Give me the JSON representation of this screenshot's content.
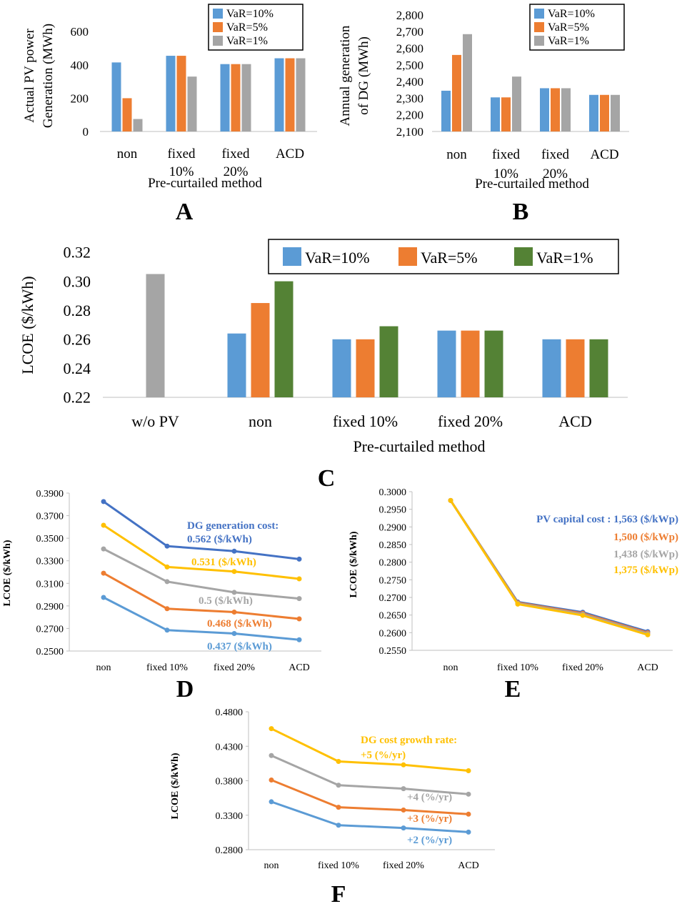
{
  "colors": {
    "blue": "#5b9bd5",
    "orange": "#ed7d31",
    "gray": "#a5a5a5",
    "green": "#548235",
    "yellow": "#ffc000",
    "darkblue": "#4472c4",
    "axis": "#bfbfbf",
    "text": "#000000"
  },
  "chart_data": [
    {
      "panel": "A",
      "type": "bar",
      "ylabel": [
        "Actual PV power",
        "Generation (MWh)"
      ],
      "xlabel": "Pre-curtailed method",
      "categories": [
        [
          "non"
        ],
        [
          "fixed",
          "10%"
        ],
        [
          "fixed",
          "20%"
        ],
        [
          "ACD"
        ]
      ],
      "ylim": [
        0,
        700
      ],
      "yticks": [
        "0",
        "200",
        "400",
        "600"
      ],
      "ytick_values": [
        0,
        200,
        400,
        600
      ],
      "legend": [
        "VaR=10%",
        "VaR=5%",
        "VaR=1%"
      ],
      "series": [
        {
          "name": "VaR=10%",
          "color": "blue",
          "values": [
            415,
            455,
            405,
            440
          ]
        },
        {
          "name": "VaR=5%",
          "color": "orange",
          "values": [
            200,
            455,
            405,
            440
          ]
        },
        {
          "name": "VaR=1%",
          "color": "gray",
          "values": [
            75,
            330,
            405,
            440
          ]
        }
      ]
    },
    {
      "panel": "B",
      "type": "bar",
      "ylabel": [
        "Annual generation",
        "of DG (MWh)"
      ],
      "xlabel": "Pre-curtailed method",
      "categories": [
        [
          "non"
        ],
        [
          "fixed",
          "10%"
        ],
        [
          "fixed",
          "20%"
        ],
        [
          "ACD"
        ]
      ],
      "ylim": [
        2100,
        2800
      ],
      "yticks": [
        "2,100",
        "2,200",
        "2,300",
        "2,400",
        "2,500",
        "2,600",
        "2,700",
        "2,800"
      ],
      "ytick_values": [
        2100,
        2200,
        2300,
        2400,
        2500,
        2600,
        2700,
        2800
      ],
      "legend": [
        "VaR=10%",
        "VaR=5%",
        "VaR=1%"
      ],
      "series": [
        {
          "name": "VaR=10%",
          "color": "blue",
          "values": [
            2345,
            2305,
            2360,
            2320
          ]
        },
        {
          "name": "VaR=5%",
          "color": "orange",
          "values": [
            2560,
            2305,
            2360,
            2320
          ]
        },
        {
          "name": "VaR=1%",
          "color": "gray",
          "values": [
            2685,
            2430,
            2360,
            2320
          ]
        }
      ]
    },
    {
      "panel": "C",
      "type": "bar",
      "ylabel": [
        "LCOE ($/kWh)"
      ],
      "xlabel": "Pre-curtailed method",
      "categories": [
        [
          "w/o PV"
        ],
        [
          "non"
        ],
        [
          "fixed 10%"
        ],
        [
          "fixed 20%"
        ],
        [
          "ACD"
        ]
      ],
      "ylim": [
        0.22,
        0.32
      ],
      "yticks": [
        "0.22",
        "0.24",
        "0.26",
        "0.28",
        "0.30",
        "0.32"
      ],
      "ytick_values": [
        0.22,
        0.24,
        0.26,
        0.28,
        0.3,
        0.32
      ],
      "legend": [
        "VaR=10%",
        "VaR=5%",
        "VaR=1%"
      ],
      "legend_colors": [
        "blue",
        "orange",
        "green"
      ],
      "reference_bar": {
        "category": 0,
        "value": 0.305,
        "color": "gray"
      },
      "series": [
        {
          "name": "VaR=10%",
          "color": "blue",
          "values": [
            null,
            0.264,
            0.26,
            0.266,
            0.26
          ]
        },
        {
          "name": "VaR=5%",
          "color": "orange",
          "values": [
            null,
            0.285,
            0.26,
            0.266,
            0.26
          ]
        },
        {
          "name": "VaR=1%",
          "color": "green",
          "values": [
            null,
            0.3,
            0.269,
            0.266,
            0.26
          ]
        }
      ]
    },
    {
      "panel": "D",
      "type": "line",
      "ylabel": [
        "LCOE ($/kWh)"
      ],
      "categories": [
        "non",
        "fixed 10%",
        "fixed 20%",
        "ACD"
      ],
      "ylim": [
        0.25,
        0.39
      ],
      "yticks": [
        "0.2500",
        "0.2700",
        "0.2900",
        "0.3100",
        "0.3300",
        "0.3500",
        "0.3700",
        "0.3900"
      ],
      "ytick_values": [
        0.25,
        0.27,
        0.29,
        0.31,
        0.33,
        0.35,
        0.37,
        0.39
      ],
      "annotation_title": "DG generation cost:",
      "series": [
        {
          "name": "0.562 ($/kWh)",
          "color": "darkblue",
          "values": [
            0.3825,
            0.343,
            0.3385,
            0.3315
          ]
        },
        {
          "name": "0.531 ($/kWh)",
          "color": "yellow",
          "values": [
            0.3615,
            0.3245,
            0.3205,
            0.314
          ]
        },
        {
          "name": "0.5 ($/kWh)",
          "color": "gray",
          "values": [
            0.3405,
            0.3115,
            0.302,
            0.2965
          ]
        },
        {
          "name": "0.468 ($/kWh)",
          "color": "orange",
          "values": [
            0.319,
            0.2875,
            0.2845,
            0.2785
          ]
        },
        {
          "name": "0.437 ($/kWh)",
          "color": "blue",
          "values": [
            0.2975,
            0.2685,
            0.2655,
            0.26
          ]
        }
      ]
    },
    {
      "panel": "E",
      "type": "line",
      "ylabel": [
        "LCOE ($/kWh)"
      ],
      "categories": [
        "non",
        "fixed 10%",
        "fixed 20%",
        "ACD"
      ],
      "ylim": [
        0.255,
        0.3
      ],
      "yticks": [
        "0.2550",
        "0.2600",
        "0.2650",
        "0.2700",
        "0.2750",
        "0.2800",
        "0.2850",
        "0.2900",
        "0.2950",
        "0.3000"
      ],
      "ytick_values": [
        0.255,
        0.26,
        0.265,
        0.27,
        0.275,
        0.28,
        0.285,
        0.29,
        0.295,
        0.3
      ],
      "annotation_title": "PV capital cost : 1,563 ($/kWp)",
      "series": [
        {
          "name": "1,563 ($/kWp)",
          "color": "darkblue",
          "values": [
            0.2975,
            0.2687,
            0.2658,
            0.2603
          ]
        },
        {
          "name": "1,500 ($/kWp)",
          "color": "orange",
          "values": [
            0.2975,
            0.2685,
            0.2655,
            0.26
          ]
        },
        {
          "name": "1,438 ($/kWp)",
          "color": "gray",
          "values": [
            0.2975,
            0.2683,
            0.2652,
            0.2597
          ]
        },
        {
          "name": "1,375 ($/kWp)",
          "color": "yellow",
          "values": [
            0.2975,
            0.2681,
            0.2649,
            0.2594
          ]
        }
      ],
      "labels": [
        "1,500 ($/kWp)",
        "1,438 ($/kWp)",
        "1,375 ($/kWp)"
      ]
    },
    {
      "panel": "F",
      "type": "line",
      "ylabel": [
        "LCOE ($/kWh)"
      ],
      "categories": [
        "non",
        "fixed 10%",
        "fixed 20%",
        "ACD"
      ],
      "ylim": [
        0.28,
        0.48
      ],
      "yticks": [
        "0.2800",
        "0.3300",
        "0.3800",
        "0.4300",
        "0.4800"
      ],
      "ytick_values": [
        0.28,
        0.33,
        0.38,
        0.43,
        0.48
      ],
      "annotation_title": "DG cost growth rate:",
      "series": [
        {
          "name": "+5 (%/yr)",
          "color": "yellow",
          "values": [
            0.4555,
            0.408,
            0.403,
            0.3945
          ]
        },
        {
          "name": "+4 (%/yr)",
          "color": "gray",
          "values": [
            0.4165,
            0.3735,
            0.3685,
            0.3605
          ]
        },
        {
          "name": "+3 (%/yr)",
          "color": "orange",
          "values": [
            0.381,
            0.3415,
            0.3375,
            0.3315
          ]
        },
        {
          "name": "+2 (%/yr)",
          "color": "blue",
          "values": [
            0.3495,
            0.3155,
            0.3115,
            0.3055
          ]
        }
      ]
    }
  ]
}
